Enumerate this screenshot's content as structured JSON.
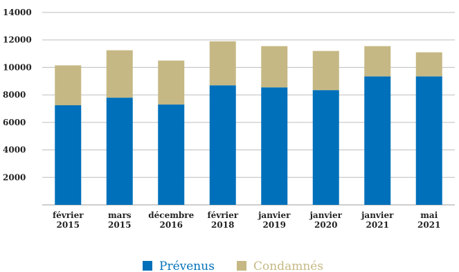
{
  "chart_data": {
    "type": "bar",
    "stacked": true,
    "categories": [
      [
        "février",
        "2015"
      ],
      [
        "mars",
        "2015"
      ],
      [
        "décembre",
        "2016"
      ],
      [
        "février",
        "2018"
      ],
      [
        "janvier",
        "2019"
      ],
      [
        "janvier",
        "2020"
      ],
      [
        "janvier",
        "2021"
      ],
      [
        "mai",
        "2021"
      ]
    ],
    "series": [
      {
        "name": "Prévenus",
        "color": "#0070BA",
        "values": [
          7250,
          7800,
          7300,
          8700,
          8550,
          8350,
          9350,
          9350
        ]
      },
      {
        "name": "Condamnés",
        "color": "#C6B884",
        "values": [
          2900,
          3450,
          3200,
          3200,
          3000,
          2850,
          2200,
          1750
        ]
      }
    ],
    "yticks": [
      2000,
      4000,
      6000,
      8000,
      10000,
      12000,
      14000
    ],
    "ylim": [
      0,
      14000
    ],
    "grid": true,
    "legend_position": "bottom"
  }
}
